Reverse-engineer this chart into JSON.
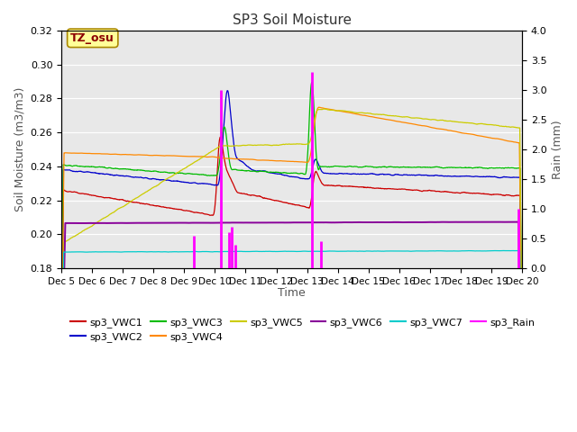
{
  "title": "SP3 Soil Moisture",
  "xlabel": "Time",
  "ylabel_left": "Soil Moisture (m3/m3)",
  "ylabel_right": "Rain (mm)",
  "ylim_left": [
    0.18,
    0.32
  ],
  "ylim_right": [
    0.0,
    4.0
  ],
  "xlim": [
    0,
    15
  ],
  "x_tick_labels": [
    "Dec 5",
    "Dec 6",
    "Dec 7",
    "Dec 8",
    "Dec 9",
    "Dec 10",
    "Dec 11",
    "Dec 12",
    "Dec 13",
    "Dec 14",
    "Dec 15",
    "Dec 16",
    "Dec 17",
    "Dec 18",
    "Dec 19",
    "Dec 20"
  ],
  "annotation_text": "TZ_osu",
  "annotation_color": "#8B0000",
  "annotation_bg": "#FFFF99",
  "bg_color": "#E8E8E8",
  "series_colors": {
    "VWC1": "#CC0000",
    "VWC2": "#0000CC",
    "VWC3": "#00BB00",
    "VWC4": "#FF8800",
    "VWC5": "#CCCC00",
    "VWC6": "#880099",
    "VWC7": "#00CCCC",
    "Rain": "#FF00FF"
  },
  "rain_times": [
    4.3,
    5.2,
    5.45,
    5.55,
    5.65,
    8.15,
    8.45,
    14.87
  ],
  "rain_heights": [
    0.55,
    3.0,
    0.6,
    0.7,
    0.4,
    3.3,
    0.45,
    1.0
  ]
}
